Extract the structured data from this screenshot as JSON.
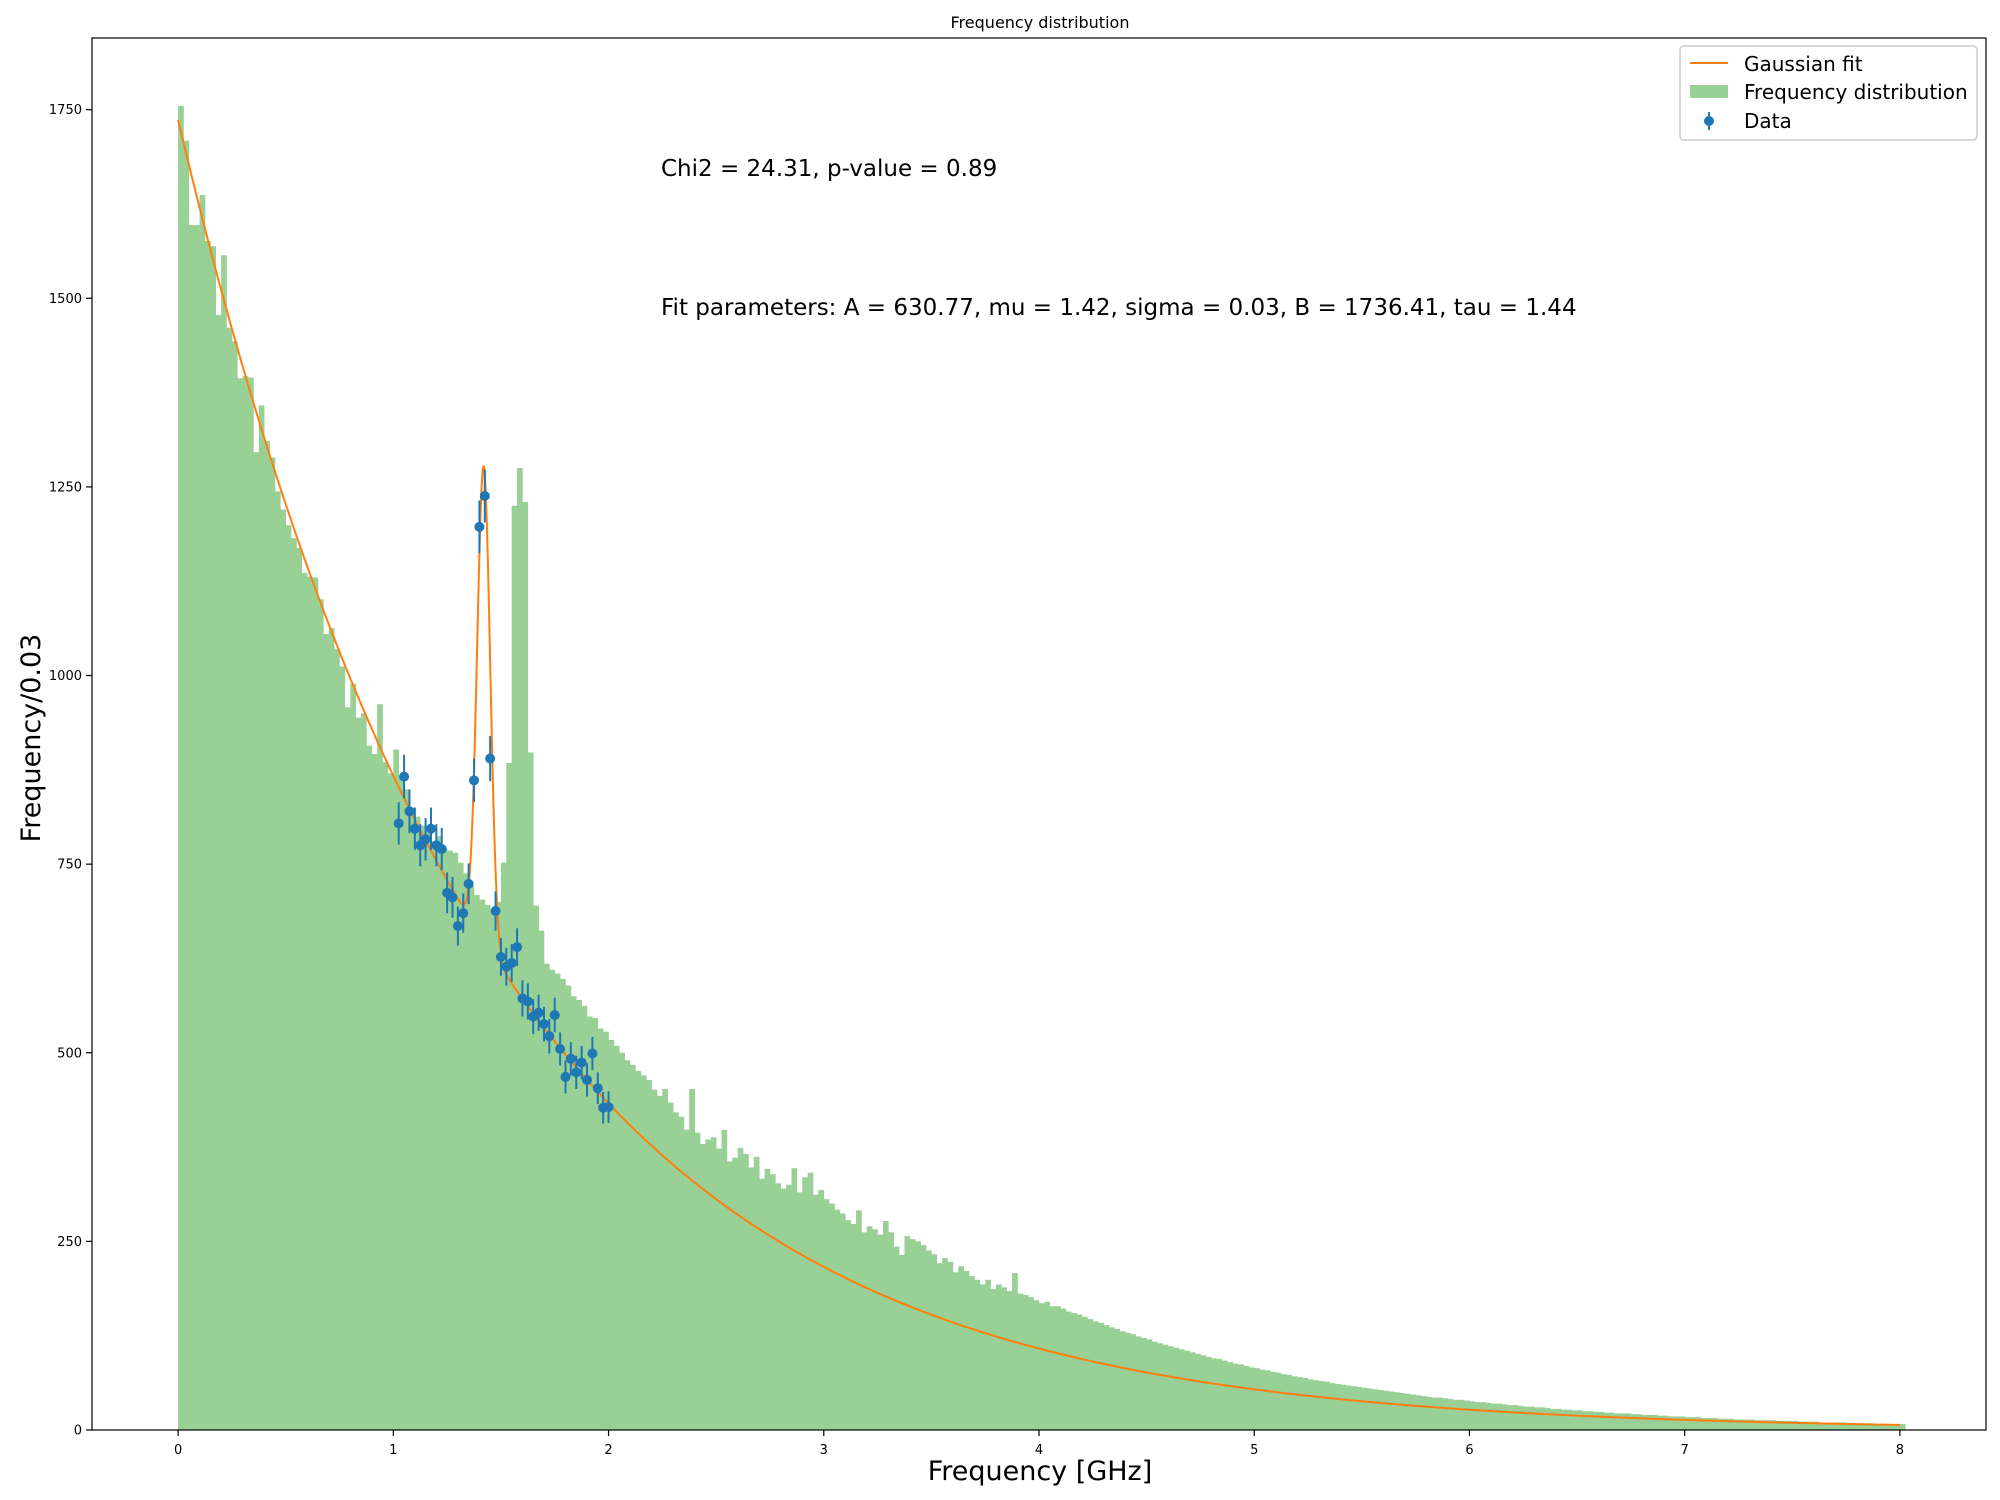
{
  "chart_data": {
    "type": "bar",
    "title": "Frequency distribution",
    "xlabel": "Frequency [GHz]",
    "ylabel": "Frequency/0.03",
    "xlim": [
      -0.4,
      8.4
    ],
    "ylim": [
      0,
      1845
    ],
    "xticks": [
      "0",
      "1",
      "2",
      "3",
      "4",
      "5",
      "6",
      "7",
      "8"
    ],
    "yticks": [
      "0",
      "250",
      "500",
      "750",
      "1000",
      "1250",
      "1500",
      "1750"
    ],
    "grid": false,
    "legend_position": "top-right",
    "legend": [
      "Gaussian fit",
      "Frequency distribution",
      "Data"
    ],
    "annotations": [
      "Chi2 = 24.31, p-value = 0.89",
      "Fit parameters: A = 630.77, mu = 1.42, sigma = 0.03, B = 1736.41, tau = 1.44"
    ],
    "fit_params": {
      "A": 630.77,
      "mu": 1.42,
      "sigma": 0.03,
      "B": 1736.41,
      "tau": 1.44
    },
    "colors": {
      "histogram": "#98d095",
      "fit": "#ff7f0e",
      "data": "#1f77b4"
    },
    "histogram": {
      "name": "Frequency distribution",
      "bin_width": 0.025,
      "range": [
        0,
        8
      ],
      "heights": [
        1755,
        1709,
        1597,
        1597,
        1637,
        1576,
        1569,
        1478,
        1557,
        1461,
        1443,
        1394,
        1397,
        1395,
        1296,
        1358,
        1311,
        1289,
        1244,
        1220,
        1199,
        1182,
        1169,
        1136,
        1131,
        1130,
        1101,
        1055,
        1063,
        1035,
        1012,
        958,
        989,
        944,
        950,
        907,
        896,
        962,
        885,
        870,
        902,
        868,
        849,
        825,
        813,
        801,
        792,
        780,
        787,
        771,
        768,
        765,
        752,
        738,
        721,
        709,
        703,
        696,
        689,
        700,
        752,
        884,
        1225,
        1275,
        1230,
        898,
        695,
        662,
        618,
        610,
        605,
        598,
        589,
        575,
        570,
        562,
        548,
        546,
        532,
        528,
        517,
        509,
        500,
        490,
        484,
        476,
        470,
        464,
        451,
        443,
        452,
        434,
        421,
        415,
        398,
        452,
        394,
        379,
        385,
        388,
        373,
        398,
        356,
        361,
        374,
        366,
        348,
        362,
        333,
        346,
        339,
        327,
        320,
        325,
        347,
        315,
        335,
        341,
        312,
        318,
        306,
        300,
        292,
        287,
        278,
        273,
        291,
        262,
        270,
        266,
        259,
        277,
        262,
        243,
        232,
        257,
        253,
        250,
        245,
        238,
        233,
        221,
        228,
        223,
        209,
        217,
        211,
        204,
        199,
        193,
        199,
        187,
        193,
        189,
        184,
        208,
        181,
        179,
        176,
        172,
        168,
        170,
        164,
        164,
        161,
        157,
        155,
        153,
        150,
        147,
        144,
        142,
        139,
        136,
        134,
        131,
        129,
        127,
        124,
        122,
        120,
        117,
        115,
        113,
        111,
        109,
        107,
        105,
        103,
        101,
        99,
        97,
        95,
        94,
        92,
        90,
        88,
        87,
        85,
        83,
        82,
        80,
        79,
        77,
        76,
        74,
        73,
        71,
        70,
        69,
        67,
        66,
        65,
        64,
        62,
        61,
        60,
        59,
        58,
        57,
        56,
        55,
        54,
        53,
        52,
        51,
        50,
        49,
        48,
        47,
        46,
        45,
        44,
        43,
        43,
        42,
        41,
        40,
        40,
        39,
        38,
        37,
        37,
        36,
        35,
        35,
        34,
        33,
        33,
        32,
        31,
        31,
        30,
        30,
        29,
        28,
        28,
        27,
        27,
        26,
        26,
        25,
        25,
        24,
        24,
        23,
        23,
        22,
        22,
        22,
        21,
        21,
        20,
        20,
        20,
        19,
        19,
        18,
        18,
        18,
        17,
        17,
        17,
        16,
        16,
        16,
        15,
        15,
        15,
        14,
        14,
        14,
        14,
        13,
        13,
        13,
        13,
        12,
        12,
        12,
        12,
        11,
        11,
        11,
        11,
        10,
        10,
        10,
        10,
        10,
        9,
        9,
        9,
        9,
        9,
        8,
        8,
        8,
        8,
        8,
        8
      ]
    },
    "data_points": {
      "name": "Data",
      "x": [
        1.025,
        1.05,
        1.075,
        1.1,
        1.125,
        1.15,
        1.175,
        1.2,
        1.225,
        1.25,
        1.275,
        1.3,
        1.325,
        1.35,
        1.375,
        1.4,
        1.425,
        1.45,
        1.475,
        1.5,
        1.525,
        1.55,
        1.575,
        1.6,
        1.625,
        1.65,
        1.675,
        1.7,
        1.725,
        1.75,
        1.775,
        1.8,
        1.825,
        1.85,
        1.875,
        1.9,
        1.925,
        1.95,
        1.975,
        2.0
      ],
      "y": [
        804,
        866,
        820,
        797,
        775,
        783,
        797,
        775,
        770,
        712,
        706,
        668,
        685,
        724,
        861,
        1197,
        1238,
        890,
        688,
        627,
        614,
        619,
        640,
        572,
        568,
        548,
        553,
        538,
        522,
        550,
        505,
        468,
        492,
        474,
        487,
        464,
        499,
        453,
        427,
        428
      ],
      "yerr": [
        28,
        29,
        29,
        28,
        28,
        28,
        28,
        28,
        28,
        27,
        27,
        26,
        26,
        27,
        29,
        35,
        35,
        30,
        26,
        25,
        25,
        25,
        25,
        24,
        24,
        23,
        24,
        23,
        23,
        23,
        22,
        22,
        22,
        22,
        22,
        22,
        22,
        21,
        21,
        21
      ]
    }
  }
}
